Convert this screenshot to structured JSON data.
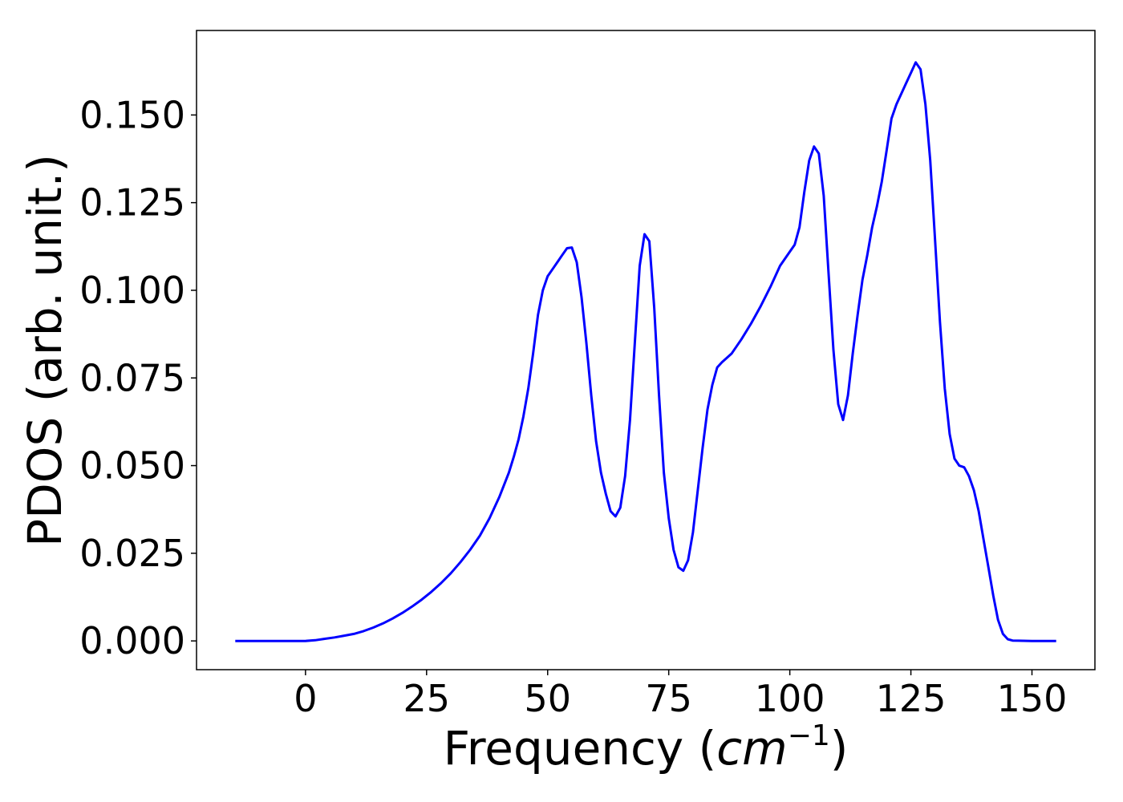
{
  "chart_data": {
    "type": "line",
    "title": "",
    "xlabel": "Frequency (",
    "xlabel_math": "cm",
    "xlabel_sup": "−1",
    "xlabel_close": ")",
    "ylabel": "PDOS (arb. unit.)",
    "xlim": [
      -22.5,
      163
    ],
    "ylim": [
      -0.0082,
      0.1741
    ],
    "xticks": [
      0,
      25,
      50,
      75,
      100,
      125,
      150
    ],
    "xtick_labels": [
      "0",
      "25",
      "50",
      "75",
      "100",
      "125",
      "150"
    ],
    "yticks": [
      0.0,
      0.025,
      0.05,
      0.075,
      0.1,
      0.125,
      0.15
    ],
    "ytick_labels": [
      "0.000",
      "0.025",
      "0.050",
      "0.075",
      "0.100",
      "0.125",
      "0.150"
    ],
    "grid": false,
    "series": [
      {
        "color": "#0000ff",
        "x": [
          -14.5,
          0,
          2,
          4,
          6,
          8,
          10,
          12,
          14,
          16,
          18,
          20,
          22,
          24,
          26,
          28,
          30,
          32,
          34,
          36,
          38,
          40,
          42,
          43,
          44,
          45,
          46,
          47,
          48,
          49,
          50,
          51,
          52,
          53,
          54,
          55,
          56,
          57,
          58,
          59,
          60,
          61,
          62,
          63,
          64,
          65,
          66,
          67,
          68,
          69,
          70,
          71,
          72,
          73,
          74,
          75,
          76,
          77,
          78,
          79,
          80,
          81,
          82,
          83,
          84,
          85,
          86,
          88,
          90,
          92,
          94,
          96,
          98,
          100,
          101,
          102,
          103,
          104,
          105,
          106,
          107,
          108,
          109,
          110,
          111,
          112,
          113,
          114,
          115,
          116,
          117,
          118,
          119,
          120,
          121,
          122,
          123,
          124,
          125,
          126,
          127,
          128,
          129,
          130,
          131,
          132,
          133,
          134,
          135,
          136,
          137,
          138,
          139,
          140,
          141,
          142,
          143,
          144,
          145,
          146,
          150,
          155
        ],
        "y": [
          0.0,
          0.0,
          0.0002,
          0.0006,
          0.001,
          0.0015,
          0.002,
          0.0028,
          0.0038,
          0.005,
          0.0064,
          0.008,
          0.0098,
          0.0118,
          0.014,
          0.0165,
          0.0193,
          0.0225,
          0.026,
          0.03,
          0.035,
          0.041,
          0.048,
          0.0525,
          0.0575,
          0.064,
          0.072,
          0.082,
          0.093,
          0.1,
          0.104,
          0.106,
          0.108,
          0.11,
          0.112,
          0.1122,
          0.108,
          0.098,
          0.085,
          0.07,
          0.057,
          0.048,
          0.042,
          0.037,
          0.0355,
          0.038,
          0.047,
          0.063,
          0.085,
          0.107,
          0.116,
          0.114,
          0.095,
          0.07,
          0.048,
          0.035,
          0.026,
          0.021,
          0.02,
          0.023,
          0.031,
          0.043,
          0.055,
          0.066,
          0.073,
          0.078,
          0.0795,
          0.082,
          0.086,
          0.0905,
          0.0955,
          0.101,
          0.107,
          0.111,
          0.113,
          0.118,
          0.128,
          0.137,
          0.141,
          0.139,
          0.127,
          0.105,
          0.083,
          0.0675,
          0.063,
          0.07,
          0.082,
          0.093,
          0.103,
          0.11,
          0.118,
          0.124,
          0.131,
          0.14,
          0.149,
          0.153,
          0.156,
          0.159,
          0.162,
          0.165,
          0.163,
          0.153,
          0.137,
          0.114,
          0.091,
          0.072,
          0.059,
          0.052,
          0.05,
          0.0495,
          0.047,
          0.043,
          0.037,
          0.029,
          0.021,
          0.013,
          0.006,
          0.002,
          0.0005,
          0.0001,
          0.0,
          0.0
        ]
      }
    ]
  }
}
